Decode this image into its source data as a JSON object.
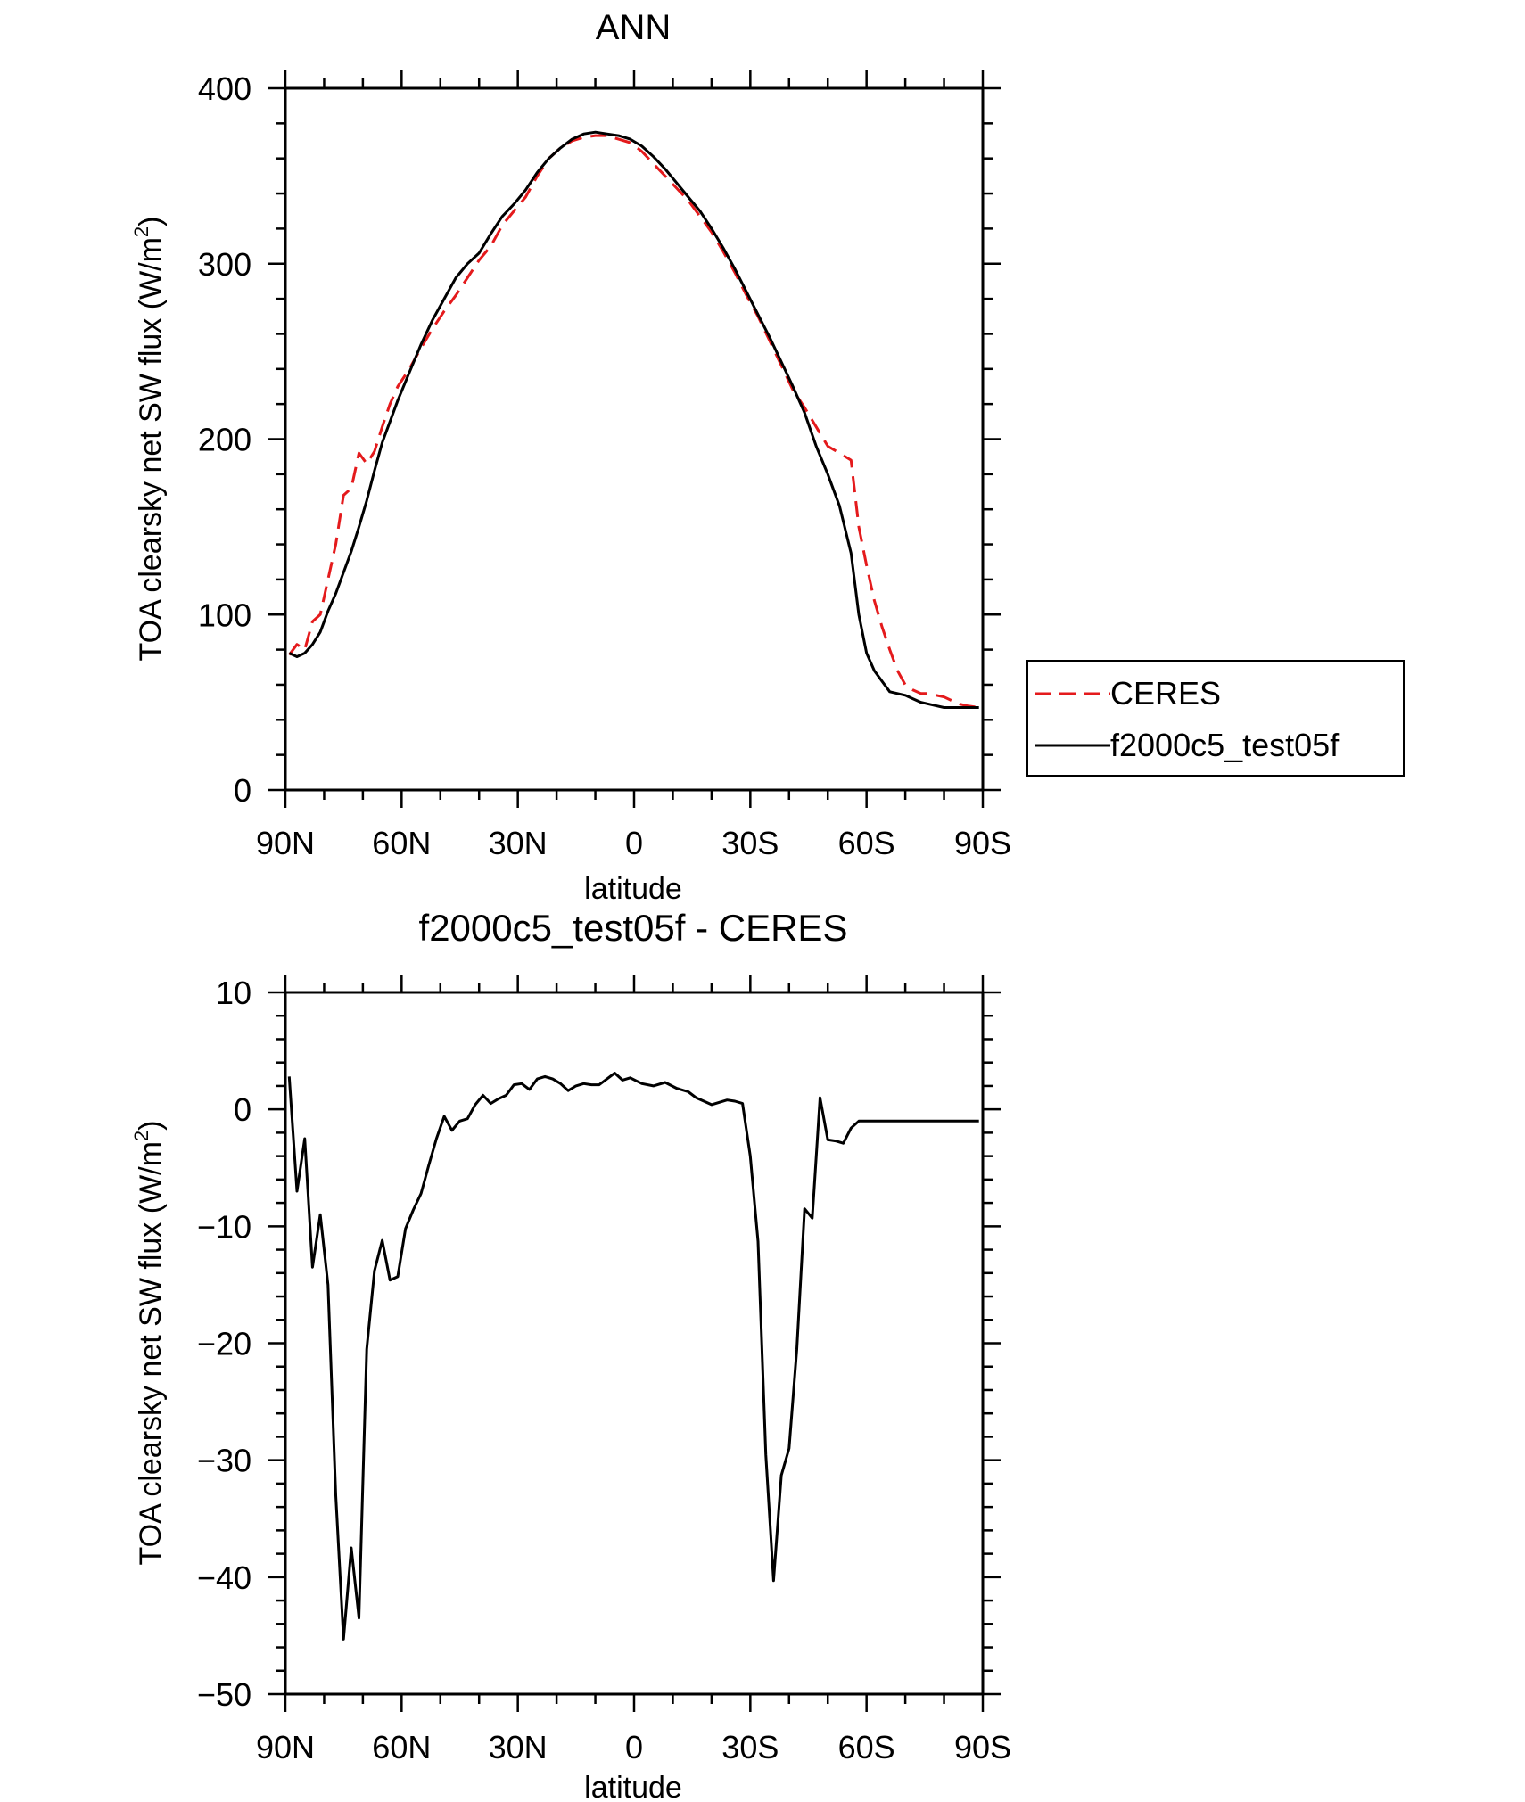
{
  "chart_data": [
    {
      "type": "line",
      "title": "ANN",
      "xlabel": "latitude",
      "ylabel": "TOA clearsky net SW flux (W/m²)",
      "ylabel_main": "TOA clearsky net SW flux (W/m",
      "ylabel_sup": "2",
      "ylabel_end": ")",
      "xlim": [
        90,
        -90
      ],
      "ylim": [
        0,
        400
      ],
      "x_ticks": [
        {
          "value": 90,
          "label": "90N"
        },
        {
          "value": 60,
          "label": "60N"
        },
        {
          "value": 30,
          "label": "30N"
        },
        {
          "value": 0,
          "label": "0"
        },
        {
          "value": -30,
          "label": "30S"
        },
        {
          "value": -60,
          "label": "60S"
        },
        {
          "value": -90,
          "label": "90S"
        }
      ],
      "y_ticks": [
        {
          "value": 0,
          "label": "0"
        },
        {
          "value": 100,
          "label": "100"
        },
        {
          "value": 200,
          "label": "200"
        },
        {
          "value": 300,
          "label": "300"
        },
        {
          "value": 400,
          "label": "400"
        }
      ],
      "legend_position": "right",
      "series": [
        {
          "name": "CERES",
          "color": "#e41a1c",
          "dash": "dashed",
          "x": [
            89,
            87,
            85,
            83,
            81,
            79,
            77,
            75,
            73,
            71,
            69,
            67,
            65,
            63,
            61,
            58,
            55,
            52,
            49,
            46,
            43,
            40,
            37,
            34,
            31,
            28,
            25,
            22,
            19,
            16,
            13,
            10,
            7,
            4,
            1,
            -2,
            -5,
            -8,
            -11,
            -14,
            -17,
            -20,
            -23,
            -26,
            -29,
            -32,
            -35,
            -38,
            -41,
            -44,
            -47,
            -50,
            -53,
            -56,
            -58,
            -60,
            -62,
            -64,
            -66,
            -68,
            -70,
            -72,
            -74,
            -76,
            -78,
            -80,
            -82,
            -84,
            -86,
            -89
          ],
          "y": [
            77,
            83,
            80,
            96,
            100,
            120,
            140,
            168,
            172,
            192,
            186,
            193,
            207,
            220,
            230,
            240,
            252,
            263,
            273,
            282,
            292,
            302,
            310,
            322,
            330,
            338,
            350,
            360,
            366,
            370,
            372,
            373,
            373,
            371,
            369,
            364,
            357,
            350,
            343,
            336,
            327,
            318,
            307,
            295,
            282,
            270,
            256,
            242,
            228,
            218,
            207,
            196,
            192,
            188,
            150,
            128,
            108,
            93,
            80,
            68,
            60,
            57,
            55,
            55,
            54,
            53,
            51,
            49,
            48,
            47
          ]
        },
        {
          "name": "f2000c5_test05f",
          "color": "#000000",
          "dash": "solid",
          "x": [
            89,
            87,
            85,
            83,
            81,
            79,
            77,
            75,
            73,
            71,
            69,
            67,
            65,
            63,
            61,
            58,
            55,
            52,
            49,
            46,
            43,
            40,
            37,
            34,
            31,
            28,
            25,
            22,
            19,
            16,
            13,
            10,
            7,
            4,
            1,
            -2,
            -5,
            -8,
            -11,
            -14,
            -17,
            -20,
            -23,
            -26,
            -29,
            -32,
            -35,
            -38,
            -41,
            -44,
            -47,
            -50,
            -53,
            -56,
            -58,
            -60,
            -62,
            -64,
            -66,
            -68,
            -70,
            -72,
            -74,
            -76,
            -78,
            -80,
            -82,
            -84,
            -86,
            -89
          ],
          "y": [
            78,
            76,
            78,
            83,
            90,
            102,
            112,
            124,
            136,
            150,
            165,
            182,
            198,
            210,
            222,
            238,
            254,
            268,
            280,
            292,
            300,
            306,
            317,
            327,
            334,
            342,
            352,
            360,
            366,
            371,
            374,
            375,
            374,
            373,
            371,
            367,
            361,
            354,
            346,
            338,
            330,
            320,
            309,
            297,
            284,
            271,
            258,
            244,
            230,
            215,
            196,
            180,
            162,
            135,
            100,
            78,
            68,
            62,
            56,
            55,
            54,
            52,
            50,
            49,
            48,
            47,
            47,
            47,
            47,
            47
          ]
        }
      ]
    },
    {
      "type": "line",
      "title": "f2000c5_test05f - CERES",
      "xlabel": "latitude",
      "ylabel": "TOA clearsky net SW flux (W/m²)",
      "ylabel_main": "TOA clearsky net SW flux (W/m",
      "ylabel_sup": "2",
      "ylabel_end": ")",
      "xlim": [
        90,
        -90
      ],
      "ylim": [
        -50,
        10
      ],
      "x_ticks": [
        {
          "value": 90,
          "label": "90N"
        },
        {
          "value": 60,
          "label": "60N"
        },
        {
          "value": 30,
          "label": "30N"
        },
        {
          "value": 0,
          "label": "0"
        },
        {
          "value": -30,
          "label": "30S"
        },
        {
          "value": -60,
          "label": "60S"
        },
        {
          "value": -90,
          "label": "90S"
        }
      ],
      "y_ticks": [
        {
          "value": -50,
          "label": "−50"
        },
        {
          "value": -40,
          "label": "−40"
        },
        {
          "value": -30,
          "label": "−30"
        },
        {
          "value": -20,
          "label": "−20"
        },
        {
          "value": -10,
          "label": "−10"
        },
        {
          "value": 0,
          "label": "0"
        },
        {
          "value": 10,
          "label": "10"
        }
      ],
      "series": [
        {
          "color": "#000000",
          "dash": "solid",
          "x": [
            89,
            87,
            85,
            83,
            81,
            79,
            77,
            75,
            73,
            71,
            69,
            67,
            65,
            63,
            61,
            59,
            57,
            55,
            53,
            51,
            49,
            47,
            45,
            43,
            41,
            39,
            37,
            35,
            33,
            31,
            29,
            27,
            25,
            23,
            21,
            19,
            17,
            15,
            13,
            11,
            9,
            7,
            5,
            3,
            1,
            -2,
            -5,
            -8,
            -11,
            -14,
            -16,
            -18,
            -20,
            -22,
            -24,
            -26,
            -28,
            -30,
            -32,
            -34,
            -36,
            -38,
            -40,
            -42,
            -44,
            -46,
            -48,
            -50,
            -52,
            -54,
            -56,
            -58,
            -60,
            -62,
            -64,
            -66,
            -68,
            -70,
            -72,
            -74,
            -76,
            -78,
            -80,
            -82,
            -84,
            -86,
            -89
          ],
          "y": [
            2.8,
            -7.0,
            -2.5,
            -13.5,
            -9.0,
            -15.0,
            -33.0,
            -45.3,
            -37.5,
            -43.5,
            -20.5,
            -13.8,
            -11.2,
            -14.6,
            -14.3,
            -10.2,
            -8.6,
            -7.2,
            -4.8,
            -2.5,
            -0.6,
            -1.8,
            -1.0,
            -0.8,
            0.4,
            1.2,
            0.5,
            0.9,
            1.2,
            2.1,
            2.2,
            1.7,
            2.6,
            2.8,
            2.6,
            2.2,
            1.6,
            2.0,
            2.2,
            2.1,
            2.1,
            2.6,
            3.1,
            2.5,
            2.7,
            2.2,
            2.0,
            2.3,
            1.8,
            1.5,
            1.0,
            0.7,
            0.4,
            0.6,
            0.8,
            0.7,
            0.5,
            -4.0,
            -11.3,
            -29.5,
            -40.3,
            -31.3,
            -29.0,
            -20.5,
            -8.5,
            -9.3,
            1.0,
            -2.6,
            -2.7,
            -2.9,
            -1.6,
            -1.0,
            -1.0,
            -1.0,
            -1.0,
            -1.0,
            -1.0,
            -1.0,
            -1.0,
            -1.0,
            -1.0,
            -1.0,
            -1.0,
            -1.0,
            -1.0,
            -1.0,
            -1.0
          ]
        }
      ]
    }
  ]
}
